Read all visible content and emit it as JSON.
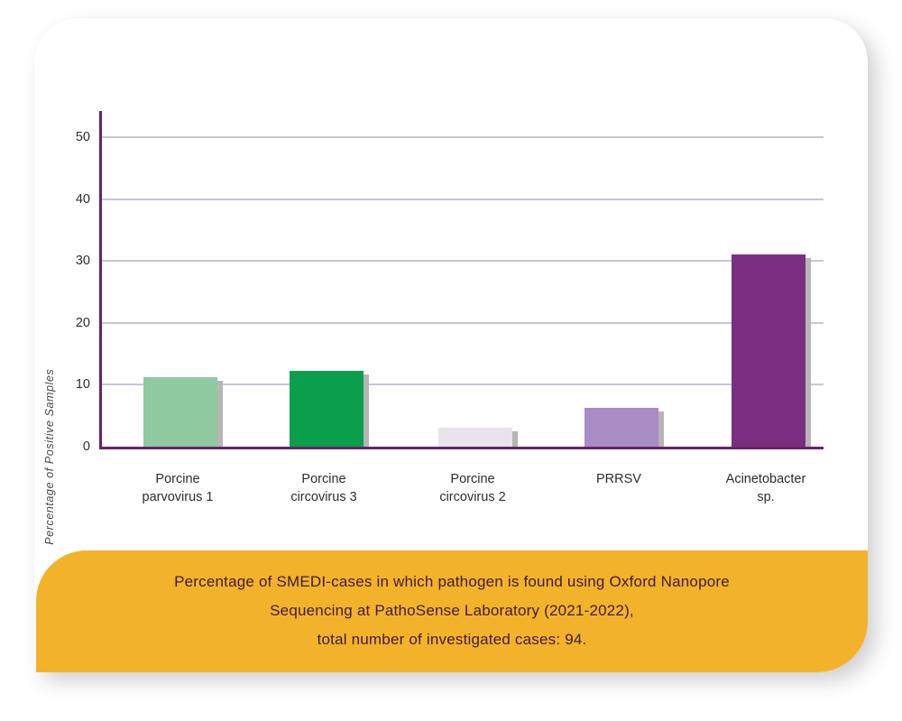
{
  "chart_data": {
    "type": "bar",
    "title": "",
    "ylabel": "Percentage of Positive Samples",
    "xlabel": "",
    "categories": [
      "Porcine parvovirus 1",
      "Porcine circovirus 3",
      "Porcine circovirus 2",
      "PRRSV",
      "Acinetobacter sp."
    ],
    "category_lines": [
      [
        "Porcine",
        "parvovirus 1"
      ],
      [
        "Porcine",
        "circovirus 3"
      ],
      [
        "Porcine",
        "circovirus 2"
      ],
      [
        "PRRSV"
      ],
      [
        "Acinetobacter",
        "sp."
      ]
    ],
    "values": [
      11.2,
      12.2,
      3,
      6.2,
      31
    ],
    "bar_colors": [
      "#8fc9a0",
      "#0c9f4b",
      "#e9e3ee",
      "#a78cc5",
      "#7b2d81"
    ],
    "yticks": [
      0,
      10,
      20,
      30,
      40,
      50
    ],
    "ylim": [
      0,
      54
    ],
    "grid": true,
    "legend_position": "none"
  },
  "caption": {
    "lines": [
      "Percentage of SMEDI-cases in which pathogen is found using Oxford Nanopore",
      "Sequencing at PathoSense Laboratory (2021-2022),",
      "total number of investigated cases: 94."
    ],
    "background": "#f2b32b",
    "text_color": "#401b3c"
  },
  "colors": {
    "axis": "#662369",
    "gridline": "#c9c4d9",
    "bar_shadow": "#b7b5b5"
  }
}
